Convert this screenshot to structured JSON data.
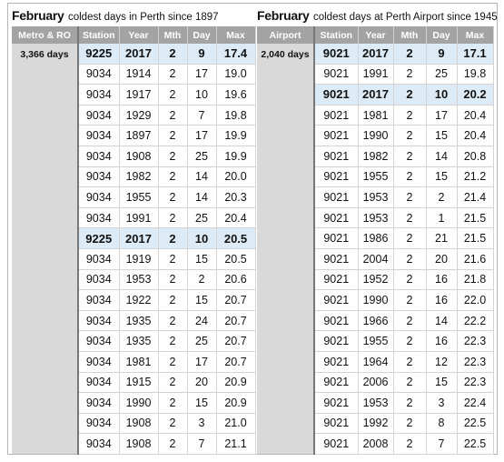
{
  "left": {
    "title_bold": "February",
    "title_rest": "coldest days in Perth since 1897",
    "columns": [
      "Metro & RO",
      "Station",
      "Year",
      "Mth",
      "Day",
      "Max"
    ],
    "count": "3,366 days",
    "highlight_rows": [
      0,
      9
    ],
    "rows": [
      [
        "9225",
        "2017",
        "2",
        "9",
        "17.4"
      ],
      [
        "9034",
        "1914",
        "2",
        "17",
        "19.0"
      ],
      [
        "9034",
        "1917",
        "2",
        "10",
        "19.6"
      ],
      [
        "9034",
        "1929",
        "2",
        "7",
        "19.8"
      ],
      [
        "9034",
        "1897",
        "2",
        "17",
        "19.9"
      ],
      [
        "9034",
        "1908",
        "2",
        "25",
        "19.9"
      ],
      [
        "9034",
        "1982",
        "2",
        "14",
        "20.0"
      ],
      [
        "9034",
        "1955",
        "2",
        "14",
        "20.3"
      ],
      [
        "9034",
        "1991",
        "2",
        "25",
        "20.4"
      ],
      [
        "9225",
        "2017",
        "2",
        "10",
        "20.5"
      ],
      [
        "9034",
        "1919",
        "2",
        "15",
        "20.5"
      ],
      [
        "9034",
        "1953",
        "2",
        "2",
        "20.6"
      ],
      [
        "9034",
        "1922",
        "2",
        "15",
        "20.7"
      ],
      [
        "9034",
        "1935",
        "2",
        "24",
        "20.7"
      ],
      [
        "9034",
        "1935",
        "2",
        "25",
        "20.7"
      ],
      [
        "9034",
        "1981",
        "2",
        "17",
        "20.7"
      ],
      [
        "9034",
        "1915",
        "2",
        "20",
        "20.9"
      ],
      [
        "9034",
        "1990",
        "2",
        "15",
        "20.9"
      ],
      [
        "9034",
        "1908",
        "2",
        "3",
        "21.0"
      ],
      [
        "9034",
        "1908",
        "2",
        "7",
        "21.1"
      ]
    ]
  },
  "right": {
    "title_bold": "February",
    "title_rest": "coldest days at Perth Airport since 1945",
    "columns": [
      "Airport",
      "Station",
      "Year",
      "Mth",
      "Day",
      "Max"
    ],
    "count": "2,040 days",
    "highlight_rows": [
      0,
      2
    ],
    "rows": [
      [
        "9021",
        "2017",
        "2",
        "9",
        "17.1"
      ],
      [
        "9021",
        "1991",
        "2",
        "25",
        "19.8"
      ],
      [
        "9021",
        "2017",
        "2",
        "10",
        "20.2"
      ],
      [
        "9021",
        "1981",
        "2",
        "17",
        "20.4"
      ],
      [
        "9021",
        "1990",
        "2",
        "15",
        "20.4"
      ],
      [
        "9021",
        "1982",
        "2",
        "14",
        "20.8"
      ],
      [
        "9021",
        "1955",
        "2",
        "15",
        "21.2"
      ],
      [
        "9021",
        "1953",
        "2",
        "2",
        "21.4"
      ],
      [
        "9021",
        "1953",
        "2",
        "1",
        "21.5"
      ],
      [
        "9021",
        "1986",
        "2",
        "21",
        "21.5"
      ],
      [
        "9021",
        "2004",
        "2",
        "20",
        "21.6"
      ],
      [
        "9021",
        "1952",
        "2",
        "16",
        "21.8"
      ],
      [
        "9021",
        "1990",
        "2",
        "16",
        "22.0"
      ],
      [
        "9021",
        "1966",
        "2",
        "14",
        "22.2"
      ],
      [
        "9021",
        "1955",
        "2",
        "16",
        "22.3"
      ],
      [
        "9021",
        "1964",
        "2",
        "12",
        "22.3"
      ],
      [
        "9021",
        "2006",
        "2",
        "15",
        "22.3"
      ],
      [
        "9021",
        "1953",
        "2",
        "3",
        "22.4"
      ],
      [
        "9021",
        "1992",
        "2",
        "8",
        "22.5"
      ],
      [
        "9021",
        "2008",
        "2",
        "7",
        "22.5"
      ]
    ]
  }
}
